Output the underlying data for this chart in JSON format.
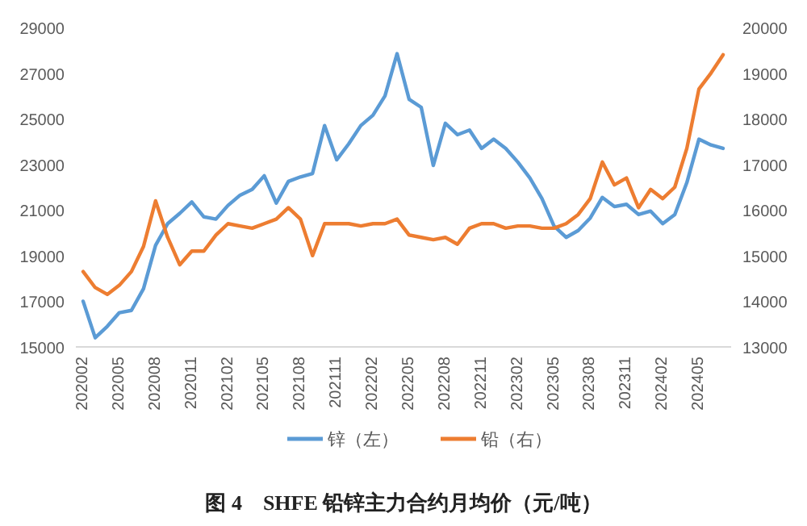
{
  "chart_data": {
    "type": "line",
    "categories": [
      "202002",
      null,
      null,
      "202005",
      null,
      null,
      "202008",
      null,
      null,
      "202011",
      null,
      null,
      "202102",
      null,
      null,
      "202105",
      null,
      null,
      "202108",
      null,
      null,
      "202111",
      null,
      null,
      "202202",
      null,
      null,
      "202205",
      null,
      null,
      "202208",
      null,
      null,
      "202211",
      null,
      null,
      "202302",
      null,
      null,
      "202305",
      null,
      null,
      "202308",
      null,
      null,
      "202311",
      null,
      null,
      "202402",
      null,
      null,
      "202405",
      null,
      null
    ],
    "series": [
      {
        "name": "锌（左）",
        "color": "#5b9bd5",
        "axis": "y",
        "values": [
          17000,
          15400,
          15900,
          16500,
          16600,
          17550,
          19450,
          20400,
          20850,
          21350,
          20700,
          20600,
          21200,
          21650,
          21900,
          22500,
          21300,
          22250,
          22450,
          22600,
          24700,
          23200,
          23900,
          24700,
          25150,
          26000,
          27850,
          25850,
          25500,
          22950,
          24800,
          24300,
          24500,
          23700,
          24100,
          23700,
          23100,
          22400,
          21500,
          20300,
          19800,
          20100,
          20650,
          21550,
          21150,
          21250,
          20800,
          20950,
          20400,
          20800,
          22200,
          24100,
          23850,
          23700
        ]
      },
      {
        "name": "铅（右）",
        "color": "#ed7d31",
        "axis": "y2",
        "values": [
          14650,
          14300,
          14150,
          14350,
          14650,
          15200,
          16200,
          15400,
          14800,
          15100,
          15100,
          15450,
          15700,
          15650,
          15600,
          15700,
          15800,
          16050,
          15800,
          15000,
          15700,
          15700,
          15700,
          15650,
          15700,
          15700,
          15800,
          15450,
          15400,
          15350,
          15400,
          15250,
          15600,
          15700,
          15700,
          15600,
          15650,
          15650,
          15600,
          15600,
          15700,
          15900,
          16250,
          17050,
          16550,
          16700,
          16050,
          16450,
          16250,
          16500,
          17350,
          18650,
          19000,
          19400
        ]
      }
    ],
    "ylim": [
      15000,
      29000
    ],
    "yticks": [
      15000,
      17000,
      19000,
      21000,
      23000,
      25000,
      27000,
      29000
    ],
    "y2lim": [
      13000,
      20000
    ],
    "y2ticks": [
      13000,
      14000,
      15000,
      16000,
      17000,
      18000,
      19000,
      20000
    ],
    "legend": "bottom",
    "annotations": [
      "图 4　SHFE 铅锌主力合约月均价（元/吨）"
    ]
  }
}
